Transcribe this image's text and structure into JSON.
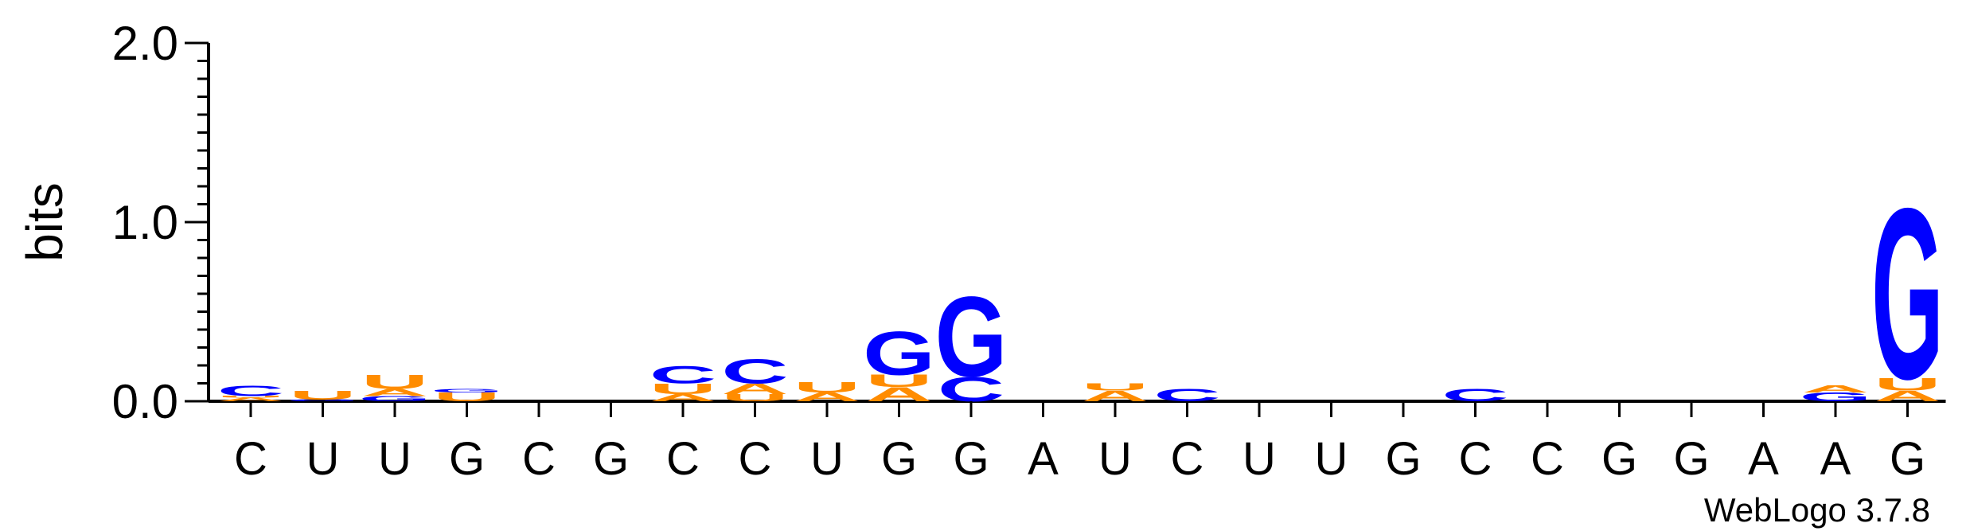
{
  "chart_data": {
    "type": "sequence-logo",
    "ylabel": "bits",
    "ylim": [
      0,
      2.0
    ],
    "yticks": [
      {
        "value": 0.0,
        "label": "0.0"
      },
      {
        "value": 1.0,
        "label": "1.0"
      },
      {
        "value": 2.0,
        "label": "2.0"
      }
    ],
    "x_labels": [
      "C",
      "U",
      "U",
      "G",
      "C",
      "G",
      "C",
      "C",
      "U",
      "G",
      "G",
      "A",
      "U",
      "C",
      "U",
      "U",
      "G",
      "C",
      "C",
      "G",
      "G",
      "A",
      "A",
      "G"
    ],
    "colors": {
      "C": "#0000ff",
      "G": "#0000ff",
      "A": "#ff8c00",
      "U": "#ff8c00"
    },
    "stacks": [
      [
        {
          "letter": "A",
          "bits": 0.02
        },
        {
          "letter": "U",
          "bits": 0.01
        },
        {
          "letter": "C",
          "bits": 0.06
        }
      ],
      [
        {
          "letter": "G",
          "bits": 0.01
        },
        {
          "letter": "U",
          "bits": 0.05
        }
      ],
      [
        {
          "letter": "G",
          "bits": 0.03
        },
        {
          "letter": "A",
          "bits": 0.04
        },
        {
          "letter": "U",
          "bits": 0.08
        }
      ],
      [
        {
          "letter": "U",
          "bits": 0.05
        },
        {
          "letter": "G",
          "bits": 0.02
        }
      ],
      [],
      [],
      [
        {
          "letter": "A",
          "bits": 0.04
        },
        {
          "letter": "U",
          "bits": 0.06
        },
        {
          "letter": "C",
          "bits": 0.1
        }
      ],
      [
        {
          "letter": "U",
          "bits": 0.04
        },
        {
          "letter": "A",
          "bits": 0.06
        },
        {
          "letter": "C",
          "bits": 0.14
        }
      ],
      [
        {
          "letter": "A",
          "bits": 0.05
        },
        {
          "letter": "U",
          "bits": 0.06
        }
      ],
      [
        {
          "letter": "A",
          "bits": 0.08
        },
        {
          "letter": "U",
          "bits": 0.07
        },
        {
          "letter": "G",
          "bits": 0.25
        }
      ],
      [
        {
          "letter": "C",
          "bits": 0.14
        },
        {
          "letter": "G",
          "bits": 0.46
        }
      ],
      [],
      [
        {
          "letter": "A",
          "bits": 0.06
        },
        {
          "letter": "U",
          "bits": 0.04
        }
      ],
      [
        {
          "letter": "C",
          "bits": 0.07
        }
      ],
      [],
      [],
      [],
      [
        {
          "letter": "C",
          "bits": 0.07
        }
      ],
      [],
      [],
      [],
      [],
      [
        {
          "letter": "G",
          "bits": 0.05
        },
        {
          "letter": "A",
          "bits": 0.04
        }
      ],
      [
        {
          "letter": "A",
          "bits": 0.06
        },
        {
          "letter": "U",
          "bits": 0.07
        },
        {
          "letter": "G",
          "bits": 0.98
        }
      ]
    ]
  },
  "credit": "WebLogo 3.7.8"
}
